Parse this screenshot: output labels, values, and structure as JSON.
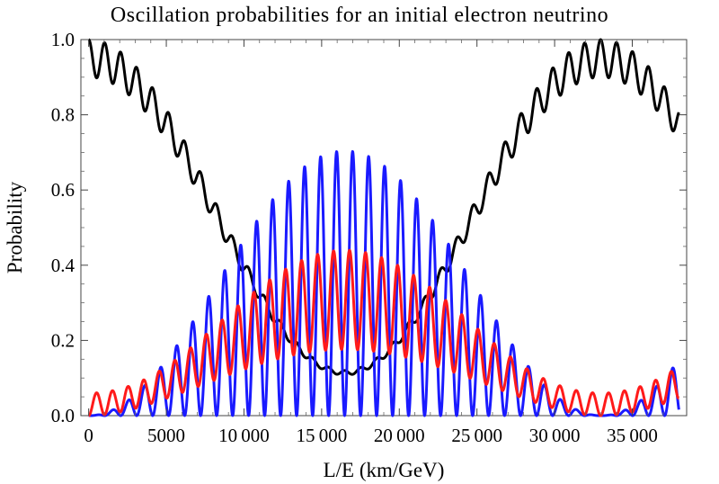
{
  "chart_data": {
    "type": "line",
    "title": "Oscillation probabilities for an initial electron neutrino",
    "xlabel": "L/E (km/GeV)",
    "ylabel": "Probability",
    "xlim": [
      -500,
      38500
    ],
    "ylim": [
      0,
      1
    ],
    "xticks": [
      0,
      5000,
      10000,
      15000,
      20000,
      25000,
      30000,
      35000
    ],
    "xtick_labels": [
      "0",
      "5000",
      "10 000",
      "15 000",
      "20 000",
      "25 000",
      "30 000",
      "35 000"
    ],
    "yticks": [
      0.0,
      0.2,
      0.4,
      0.6,
      0.8,
      1.0
    ],
    "ytick_labels": [
      "0.0",
      "0.2",
      "0.4",
      "0.6",
      "0.8",
      "1.0"
    ],
    "grid": false,
    "frame": "box",
    "model": {
      "long_period": 33000,
      "short_period": 1030,
      "x_range": [
        0,
        38000
      ]
    },
    "series": [
      {
        "color": "#000000",
        "amplitude_long": 0.88,
        "envelope_short": 1.0
      },
      {
        "color": "#1a1aff",
        "amplitude_long": 0.88,
        "envelope_short": 0.8
      },
      {
        "color": "#ff1a1a",
        "amplitude_long": 0.88,
        "envelope_short": 0.5
      }
    ]
  }
}
